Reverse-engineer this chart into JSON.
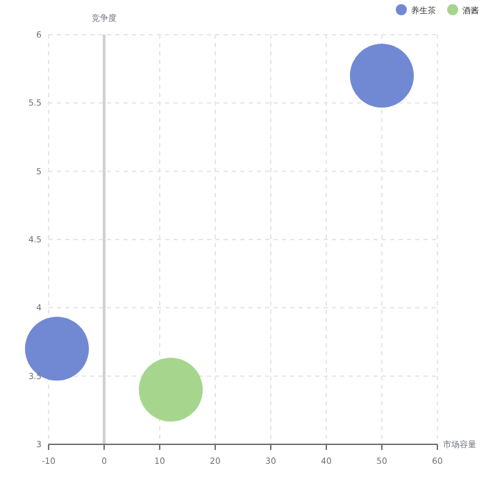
{
  "chart_data": {
    "type": "bubble",
    "xlabel": "市场容量",
    "ylabel": "竞争度",
    "xlim": [
      -10,
      60
    ],
    "xticks": [
      -10,
      0,
      10,
      20,
      30,
      40,
      50,
      60
    ],
    "ylim": [
      3,
      6
    ],
    "yticks": [
      3,
      3.5,
      4,
      4.5,
      5,
      5.5,
      6
    ],
    "grid": true,
    "legend": "top right",
    "series": [
      {
        "name": "养生茶",
        "color": "#7189d2",
        "x": [
          -8.5,
          50
        ],
        "values": [
          3.7,
          5.7
        ],
        "sizes": [
          1,
          1
        ]
      },
      {
        "name": "酒酱",
        "color": "#a6d68e",
        "x": [
          12
        ],
        "values": [
          3.4
        ],
        "sizes": [
          1
        ]
      }
    ]
  }
}
